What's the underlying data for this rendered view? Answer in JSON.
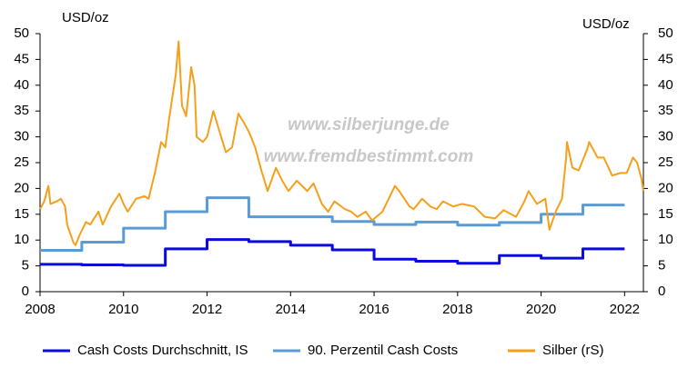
{
  "chart_data": {
    "type": "line",
    "y_label": "USD/oz",
    "y2_label": "USD/oz",
    "annotations": [
      "www.silberjunge.de",
      "www.fremdbestimmt.com"
    ],
    "xlim": [
      2008,
      2022.45
    ],
    "xticks": [
      2008,
      2010,
      2012,
      2014,
      2016,
      2018,
      2020,
      2022
    ],
    "ylim": [
      0,
      50
    ],
    "yticks": [
      0,
      5,
      10,
      15,
      20,
      25,
      30,
      35,
      40,
      45,
      50
    ],
    "y2lim": [
      0,
      50
    ],
    "y2ticks": [
      0,
      5,
      10,
      15,
      20,
      25,
      30,
      35,
      40,
      45,
      50
    ],
    "legend": "bottom",
    "series": [
      {
        "name": "Cash Costs Durchschnitt, IS",
        "color": "#0a0adc",
        "step": true,
        "x": [
          2008,
          2009,
          2010,
          2011,
          2012,
          2013,
          2014,
          2015,
          2016,
          2017,
          2018,
          2019,
          2020,
          2021,
          2022
        ],
        "values": [
          5.3,
          5.2,
          5.1,
          8.3,
          10.1,
          9.7,
          9.0,
          8.1,
          6.3,
          5.9,
          5.5,
          7.0,
          6.5,
          8.3,
          8.3
        ]
      },
      {
        "name": "90. Perzentil Cash Costs",
        "color": "#5b9bd5",
        "step": true,
        "x": [
          2008,
          2009,
          2010,
          2011,
          2012,
          2013,
          2014,
          2015,
          2016,
          2017,
          2018,
          2019,
          2020,
          2021,
          2022
        ],
        "values": [
          8.0,
          9.6,
          12.3,
          15.5,
          18.2,
          14.5,
          14.5,
          13.6,
          13.0,
          13.5,
          12.9,
          13.4,
          15.0,
          16.8,
          16.8
        ]
      },
      {
        "name": "Silber (rS)",
        "color": "#f5a01a",
        "axis": "y2",
        "x": [
          2008.0,
          2008.1,
          2008.2,
          2008.25,
          2008.4,
          2008.5,
          2008.6,
          2008.65,
          2008.8,
          2008.85,
          2008.95,
          2009.1,
          2009.2,
          2009.4,
          2009.5,
          2009.7,
          2009.9,
          2010.0,
          2010.1,
          2010.3,
          2010.5,
          2010.6,
          2010.75,
          2010.9,
          2011.0,
          2011.1,
          2011.25,
          2011.32,
          2011.4,
          2011.5,
          2011.62,
          2011.7,
          2011.75,
          2011.9,
          2012.0,
          2012.15,
          2012.3,
          2012.45,
          2012.6,
          2012.75,
          2012.9,
          2013.0,
          2013.15,
          2013.3,
          2013.45,
          2013.65,
          2013.8,
          2013.95,
          2014.15,
          2014.4,
          2014.55,
          2014.75,
          2014.9,
          2015.05,
          2015.3,
          2015.45,
          2015.6,
          2015.8,
          2015.95,
          2016.2,
          2016.5,
          2016.6,
          2016.85,
          2016.95,
          2017.15,
          2017.35,
          2017.5,
          2017.65,
          2017.9,
          2018.1,
          2018.4,
          2018.65,
          2018.9,
          2019.1,
          2019.4,
          2019.6,
          2019.7,
          2019.9,
          2020.1,
          2020.2,
          2020.35,
          2020.5,
          2020.6,
          2020.62,
          2020.75,
          2020.9,
          2021.1,
          2021.15,
          2021.35,
          2021.5,
          2021.7,
          2021.9,
          2022.05,
          2022.2,
          2022.3,
          2022.4,
          2022.45
        ],
        "values": [
          16,
          17.5,
          20.5,
          17,
          17.5,
          18,
          16.5,
          13,
          9.5,
          9,
          11,
          13.5,
          13,
          15.5,
          13,
          16.5,
          19,
          17,
          15.5,
          18,
          18.5,
          18,
          23,
          29,
          28,
          34,
          42,
          48.5,
          36,
          34,
          43.5,
          40,
          30,
          29,
          30,
          35,
          31,
          27,
          28,
          34.5,
          32.5,
          31,
          28,
          23.5,
          19.5,
          24,
          21.5,
          19.5,
          21.5,
          19.5,
          21,
          17,
          15.5,
          17.5,
          16,
          15.5,
          14.5,
          15.5,
          13.8,
          15.5,
          20.5,
          19.5,
          16.5,
          16,
          18,
          16.5,
          16,
          17.5,
          16.5,
          17,
          16.5,
          14.5,
          14.2,
          15.8,
          14.5,
          17.5,
          19.5,
          17,
          18,
          12,
          15.5,
          18,
          26,
          29,
          24,
          23.5,
          27.5,
          29,
          26,
          26,
          22.5,
          23,
          23,
          26,
          25,
          22,
          19.5
        ]
      }
    ]
  }
}
